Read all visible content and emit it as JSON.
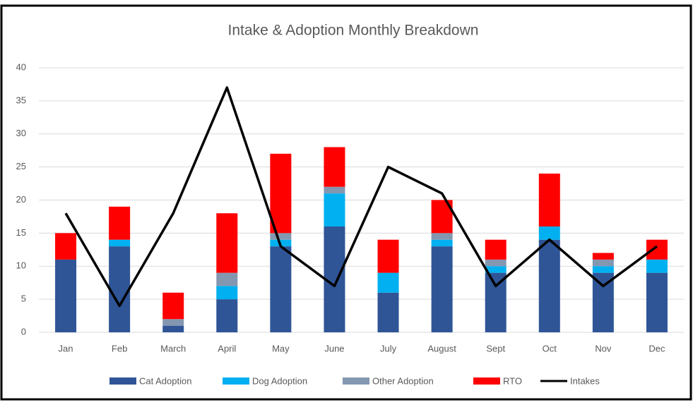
{
  "chart_data": {
    "type": "bar",
    "stacked": true,
    "title": "Intake & Adoption Monthly Breakdown",
    "categories": [
      "Jan",
      "Feb",
      "March",
      "April",
      "May",
      "June",
      "July",
      "August",
      "Sept",
      "Oct",
      "Nov",
      "Dec"
    ],
    "series": [
      {
        "name": "Cat Adoption",
        "color": "#2f5597",
        "values": [
          11,
          13,
          1,
          5,
          13,
          16,
          6,
          13,
          9,
          14,
          9,
          9
        ]
      },
      {
        "name": "Dog Adoption",
        "color": "#00b0f0",
        "values": [
          0,
          1,
          0,
          2,
          1,
          5,
          3,
          1,
          1,
          2,
          1,
          2
        ]
      },
      {
        "name": "Other Adoption",
        "color": "#8497b0",
        "values": [
          0,
          0,
          1,
          2,
          1,
          1,
          0,
          1,
          1,
          0,
          1,
          0
        ]
      },
      {
        "name": "RTO",
        "color": "#ff0000",
        "values": [
          4,
          5,
          4,
          9,
          12,
          6,
          5,
          5,
          3,
          8,
          1,
          3
        ]
      },
      {
        "name": "Intakes",
        "type": "line",
        "color": "#000000",
        "values": [
          18,
          4,
          18,
          37,
          13,
          7,
          25,
          21,
          7,
          14,
          7,
          13
        ]
      }
    ],
    "ylim": [
      0,
      40
    ],
    "yticks": [
      0,
      5,
      10,
      15,
      20,
      25,
      30,
      35,
      40
    ],
    "grid": true,
    "legend": "bottom"
  }
}
